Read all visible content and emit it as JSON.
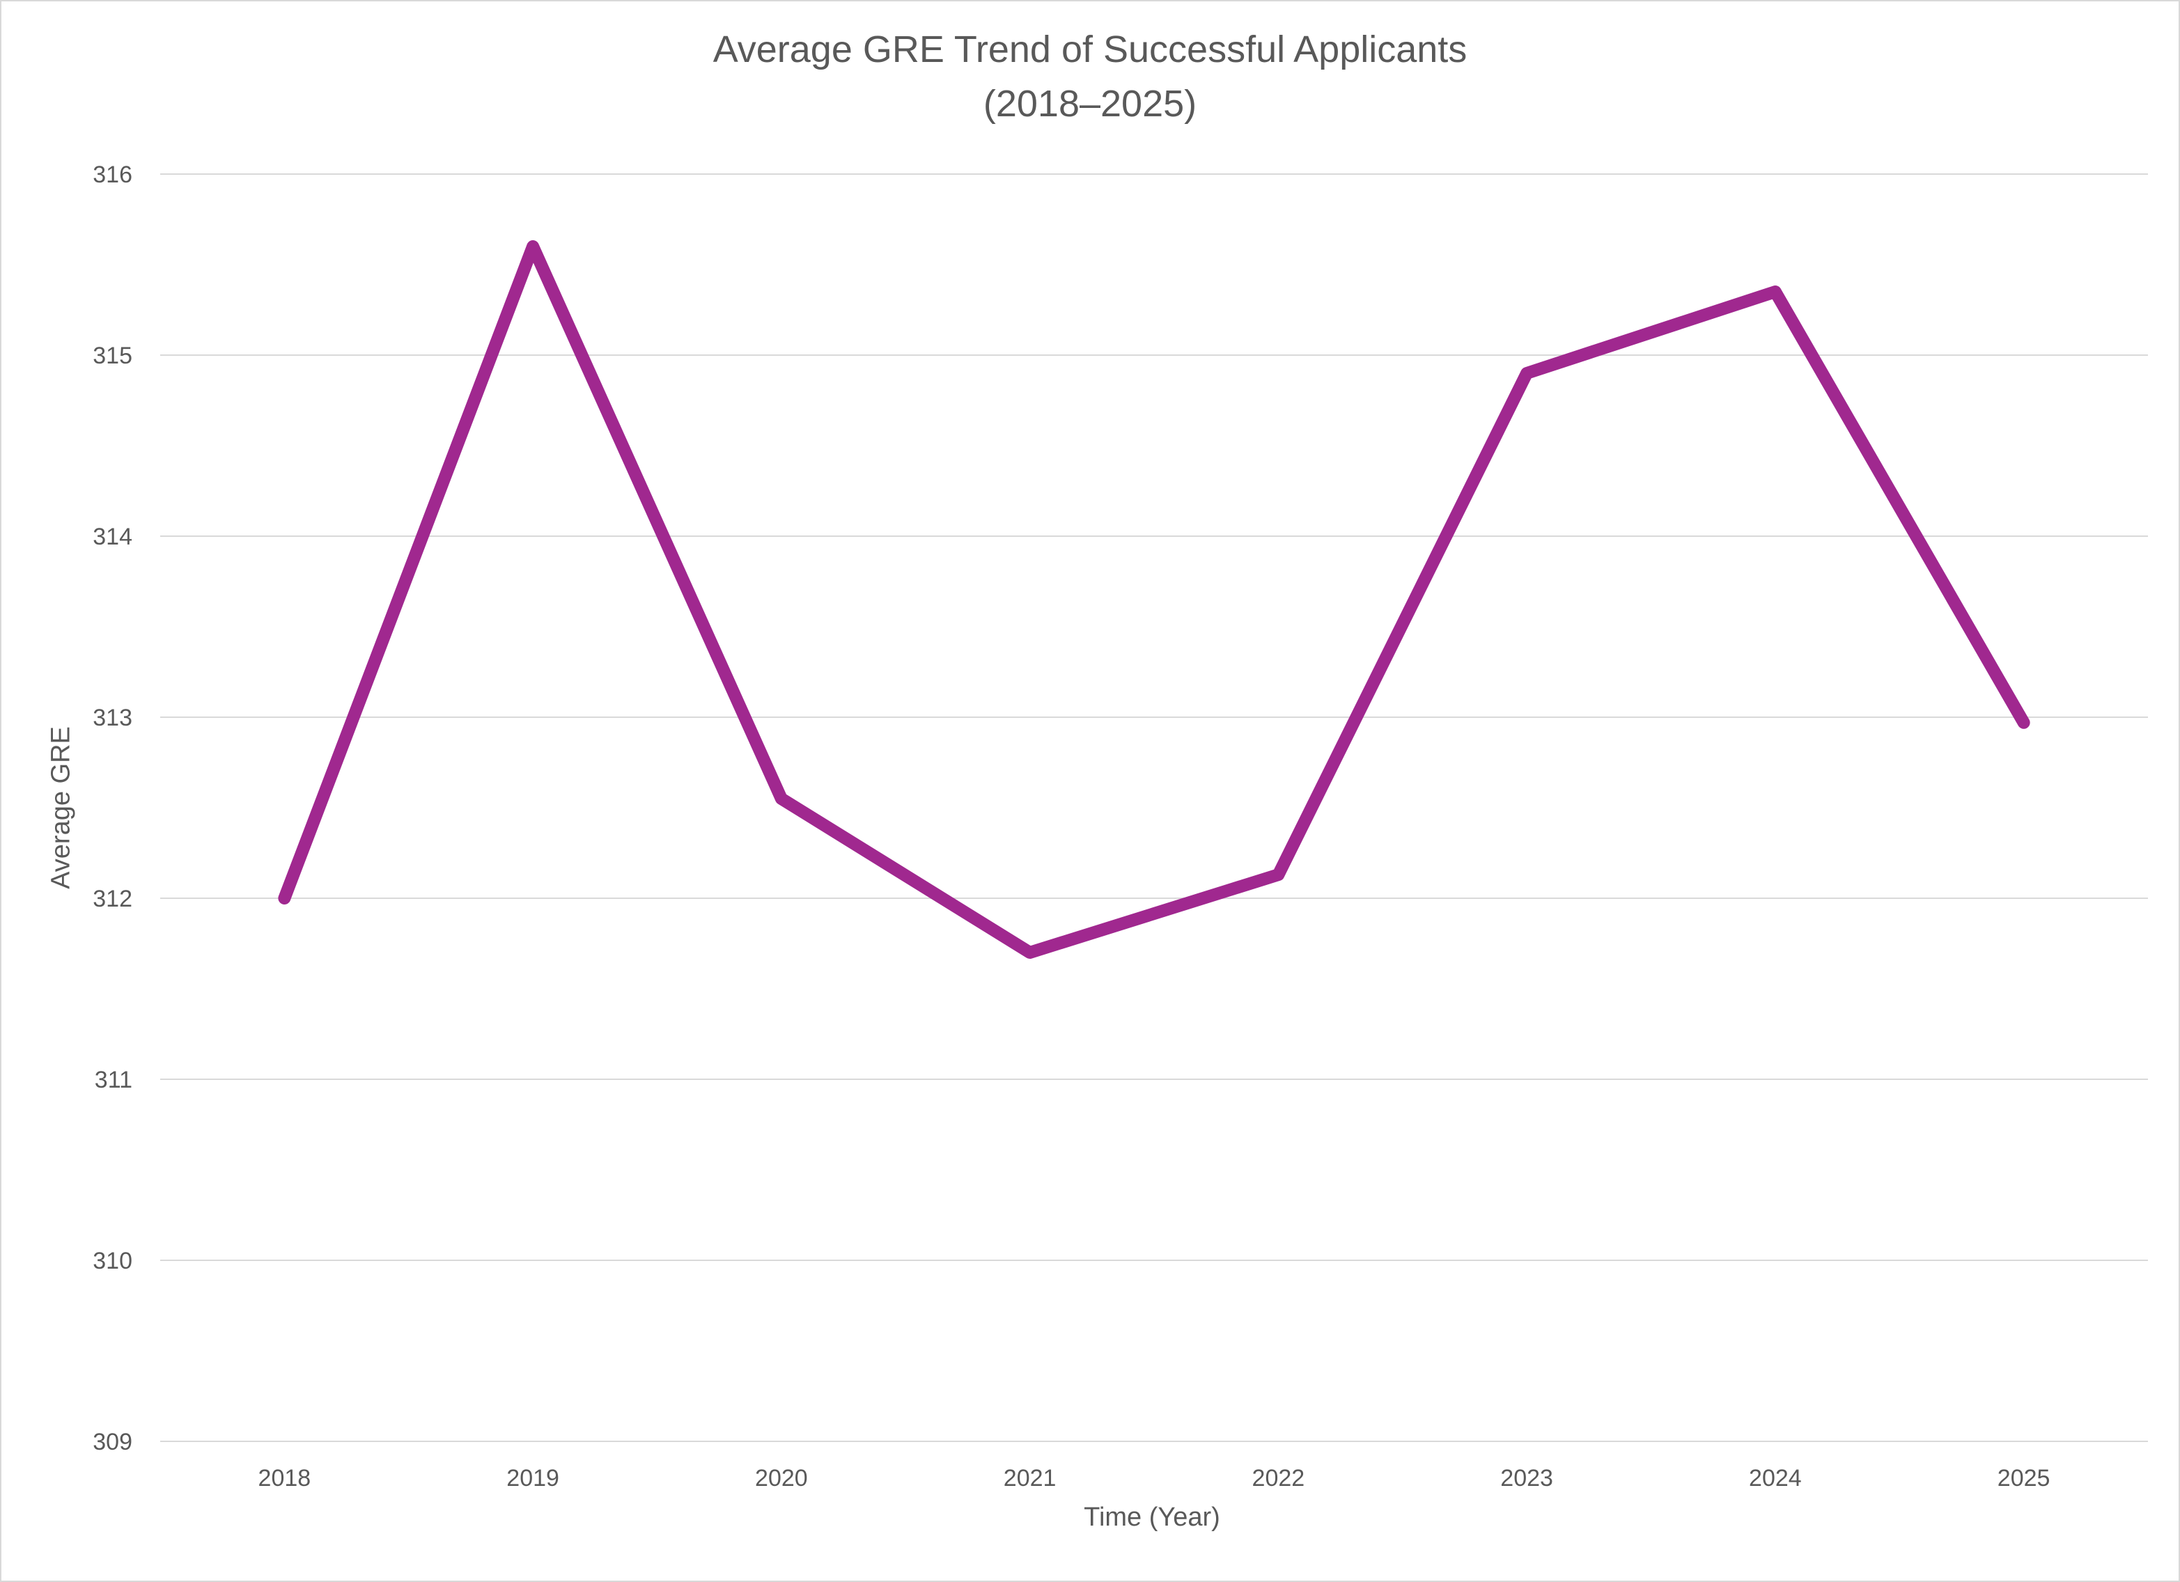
{
  "chart_data": {
    "type": "line",
    "title": "Average GRE Trend of Successful Applicants",
    "subtitle": "(2018–2025)",
    "xlabel": "Time (Year)",
    "ylabel": "Average GRE",
    "categories": [
      "2018",
      "2019",
      "2020",
      "2021",
      "2022",
      "2023",
      "2024",
      "2025"
    ],
    "series": [
      {
        "values": [
          312.0,
          315.6,
          312.55,
          311.7,
          312.13,
          314.9,
          315.35,
          312.97
        ],
        "color": "#A0288F"
      }
    ],
    "ylim": [
      309,
      316
    ],
    "yticks": [
      "309",
      "310",
      "311",
      "312",
      "313",
      "314",
      "315",
      "316"
    ],
    "grid": true,
    "legend": "none"
  }
}
